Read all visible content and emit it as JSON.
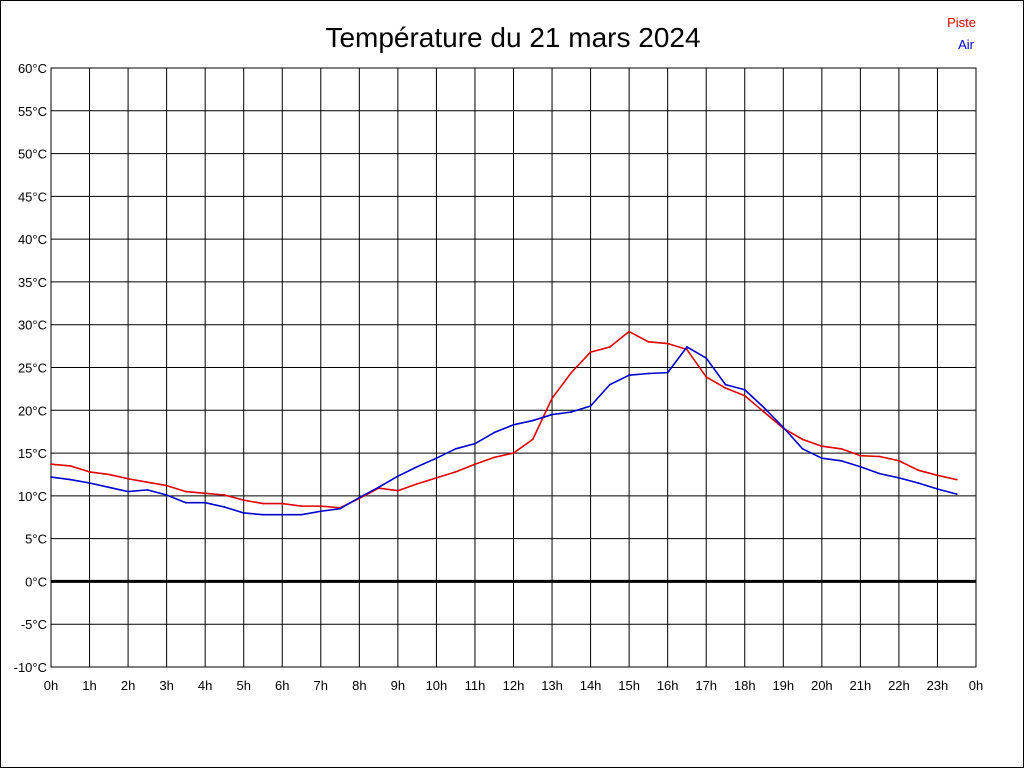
{
  "chart_data": {
    "type": "line",
    "title": "Température du 21 mars 2024",
    "xlabel": "",
    "ylabel": "",
    "x_ticks": [
      "0h",
      "1h",
      "2h",
      "3h",
      "4h",
      "5h",
      "6h",
      "7h",
      "8h",
      "9h",
      "10h",
      "11h",
      "12h",
      "13h",
      "14h",
      "15h",
      "16h",
      "17h",
      "18h",
      "19h",
      "20h",
      "21h",
      "22h",
      "23h",
      "0h"
    ],
    "y_ticks": [
      "60°C",
      "55°C",
      "50°C",
      "45°C",
      "40°C",
      "35°C",
      "30°C",
      "25°C",
      "20°C",
      "15°C",
      "10°C",
      "5°C",
      "0°C",
      "-5°C",
      "-10°C"
    ],
    "xlim": [
      0,
      24
    ],
    "ylim": [
      -10,
      60
    ],
    "grid": true,
    "legend_position": "top-right",
    "series": [
      {
        "name": "Piste",
        "color": "#dd0000",
        "x": [
          0,
          0.5,
          1,
          1.5,
          2,
          2.5,
          3,
          3.5,
          4,
          4.5,
          5,
          5.5,
          6,
          6.5,
          7,
          7.5,
          8,
          8.5,
          9,
          9.5,
          10,
          10.5,
          11,
          11.5,
          12,
          12.5,
          13,
          13.5,
          14,
          14.5,
          15,
          15.5,
          16,
          16.5,
          17,
          17.5,
          18,
          18.5,
          19,
          19.5,
          20,
          20.5,
          21,
          21.5,
          22,
          22.5,
          23,
          23.5
        ],
        "values": [
          13.7,
          13.5,
          12.8,
          12.5,
          12.0,
          11.6,
          11.2,
          10.5,
          10.3,
          10.1,
          9.5,
          9.1,
          9.1,
          8.8,
          8.8,
          8.6,
          9.7,
          10.9,
          10.6,
          11.4,
          12.1,
          12.8,
          13.7,
          14.5,
          15.0,
          16.6,
          21.4,
          24.4,
          26.8,
          27.4,
          29.2,
          28.0,
          27.8,
          27.1,
          23.9,
          22.6,
          21.7,
          19.8,
          17.9,
          16.6,
          15.8,
          15.5,
          14.7,
          14.6,
          14.1,
          13.0,
          12.4,
          11.9
        ]
      },
      {
        "name": "Air",
        "color": "#0000cc",
        "x": [
          0,
          0.5,
          1,
          1.5,
          2,
          2.5,
          3,
          3.5,
          4,
          4.5,
          5,
          5.5,
          6,
          6.5,
          7,
          7.5,
          8,
          8.5,
          9,
          9.5,
          10,
          10.5,
          11,
          11.5,
          12,
          12.5,
          13,
          13.5,
          14,
          14.5,
          15,
          15.5,
          16,
          16.5,
          17,
          17.5,
          18,
          18.5,
          19,
          19.5,
          20,
          20.5,
          21,
          21.5,
          22,
          22.5,
          23,
          23.5
        ],
        "values": [
          12.2,
          11.9,
          11.5,
          11.0,
          10.5,
          10.7,
          10.1,
          9.2,
          9.2,
          8.7,
          8.0,
          7.8,
          7.8,
          7.8,
          8.2,
          8.5,
          9.8,
          11.0,
          12.3,
          13.4,
          14.4,
          15.5,
          16.1,
          17.4,
          18.3,
          18.8,
          19.5,
          19.8,
          20.5,
          23.0,
          24.1,
          24.3,
          24.4,
          27.4,
          26.1,
          23.0,
          22.4,
          20.3,
          18.0,
          15.5,
          14.4,
          14.1,
          13.4,
          12.6,
          12.1,
          11.5,
          10.8,
          10.2
        ]
      }
    ]
  }
}
